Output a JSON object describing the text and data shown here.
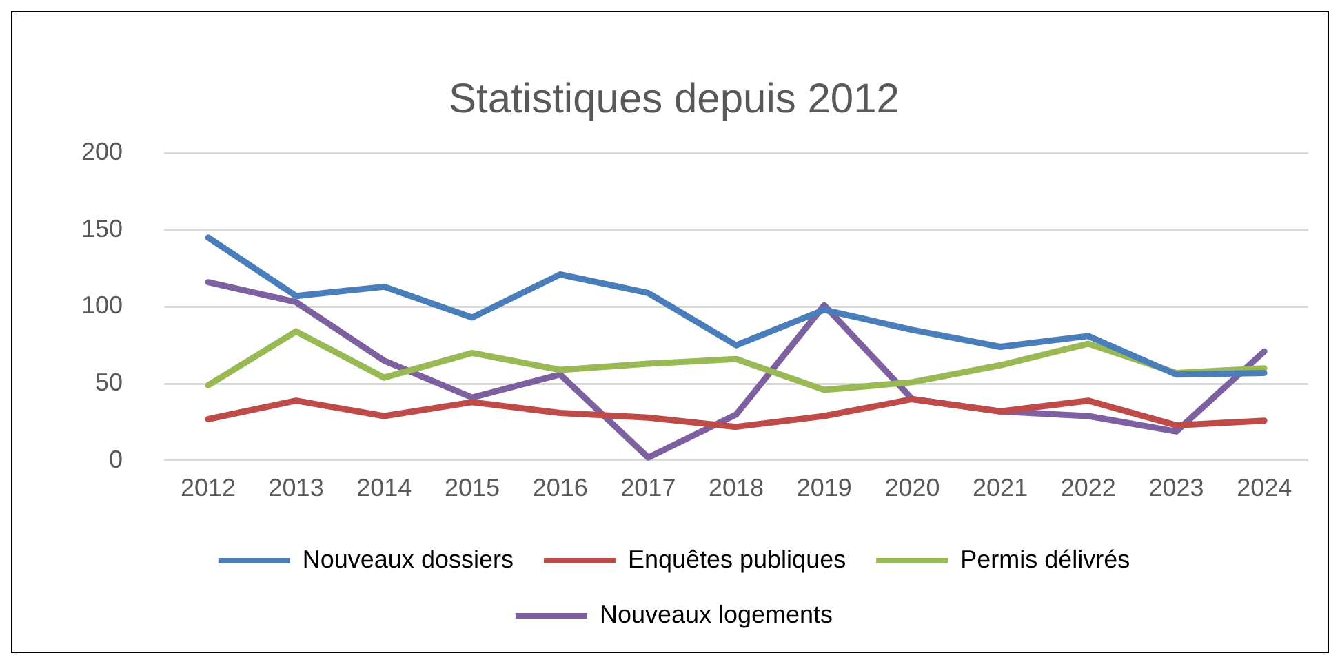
{
  "chart_data": {
    "type": "line",
    "title": "Statistiques depuis 2012",
    "categories": [
      "2012",
      "2013",
      "2014",
      "2015",
      "2016",
      "2017",
      "2018",
      "2019",
      "2020",
      "2021",
      "2022",
      "2023",
      "2024"
    ],
    "series": [
      {
        "name": "Nouveaux dossiers",
        "color": "#4a7ebb",
        "values": [
          145,
          107,
          113,
          93,
          121,
          109,
          75,
          98,
          85,
          74,
          81,
          56,
          57
        ]
      },
      {
        "name": "Enquêtes publiques",
        "color": "#be4b48",
        "values": [
          27,
          39,
          29,
          38,
          31,
          28,
          22,
          29,
          40,
          32,
          39,
          23,
          26
        ]
      },
      {
        "name": "Permis délivrés",
        "color": "#98b954",
        "values": [
          49,
          84,
          54,
          70,
          59,
          63,
          66,
          46,
          51,
          62,
          76,
          57,
          60
        ]
      },
      {
        "name": "Nouveaux logements",
        "color": "#7d60a0",
        "values": [
          116,
          103,
          65,
          41,
          56,
          2,
          30,
          101,
          40,
          32,
          29,
          19,
          71
        ]
      }
    ],
    "ylim": [
      0,
      200
    ],
    "yticks": [
      0,
      50,
      100,
      150,
      200
    ],
    "grid": "y",
    "legend": "bottom",
    "marker": "none",
    "line_style": "solid"
  }
}
